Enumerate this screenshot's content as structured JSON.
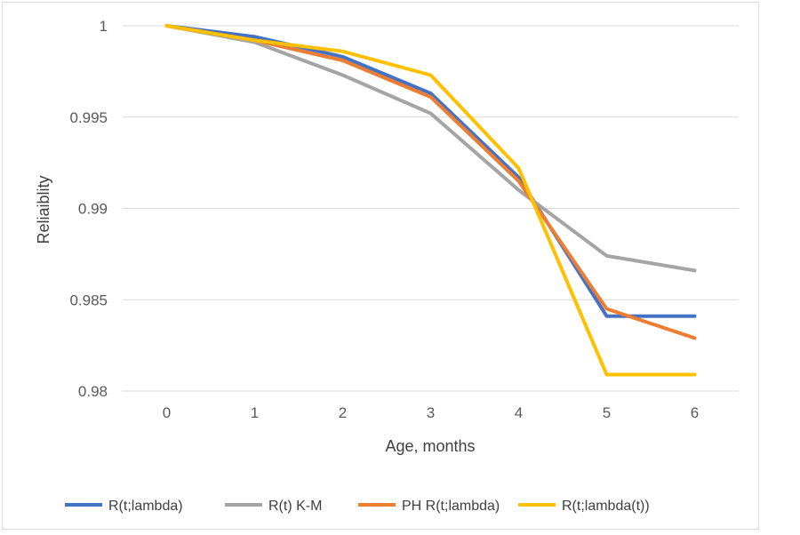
{
  "chart_data": {
    "type": "line",
    "title": "",
    "xlabel": "Age, months",
    "ylabel": "Reliaiblity",
    "x": [
      0,
      1,
      2,
      3,
      4,
      5,
      6
    ],
    "x_tick_labels": [
      "0",
      "1",
      "2",
      "3",
      "4",
      "5",
      "6"
    ],
    "ylim": [
      0.98,
      1
    ],
    "y_ticks": [
      0.98,
      0.985,
      0.99,
      0.995,
      1
    ],
    "y_tick_labels": [
      "0.98",
      "0.985",
      "0.99",
      "0.995",
      "1"
    ],
    "grid": "horizontal",
    "legend_position": "bottom",
    "series": [
      {
        "name": "R(t;lambda)",
        "color": "#4472C4",
        "values": [
          1.0,
          0.9994,
          0.9983,
          0.9963,
          0.9917,
          0.9841,
          0.9841
        ]
      },
      {
        "name": "R(t) K-M",
        "color": "#A5A5A5",
        "values": [
          1.0,
          0.9991,
          0.9973,
          0.9952,
          0.991,
          0.9874,
          0.9866
        ]
      },
      {
        "name": "PH R(t;lambda)",
        "color": "#ED7D31",
        "values": [
          1.0,
          0.9992,
          0.9981,
          0.9961,
          0.9915,
          0.9845,
          0.9829
        ]
      },
      {
        "name": "R(t;lambda(t))",
        "color": "#FFC000",
        "values": [
          1.0,
          0.9992,
          0.9986,
          0.9973,
          0.9922,
          0.9809,
          0.9809
        ]
      }
    ]
  }
}
